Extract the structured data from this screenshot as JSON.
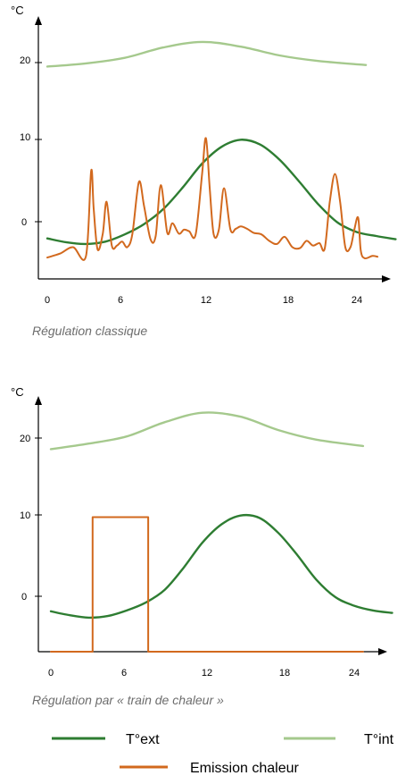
{
  "colors": {
    "ext": "#2e7d32",
    "int": "#a5c98d",
    "emission": "#d2691e",
    "axis": "#000000"
  },
  "legend": {
    "ext": "T°ext",
    "int": "T°int",
    "emission": "Emission chaleur"
  },
  "chart_data": [
    {
      "type": "line",
      "caption": "Régulation classique",
      "ylabel": "°C",
      "x_ticks": [
        "0",
        "6",
        "12",
        "18",
        "24"
      ],
      "y_ticks": [
        "0",
        "10",
        "20"
      ],
      "xlim": [
        0,
        27.3
      ],
      "ylim": [
        -7,
        27
      ],
      "series": [
        {
          "key": "int",
          "name": "T°int",
          "x": [
            0,
            3,
            6,
            9,
            12,
            15,
            18,
            21,
            24.7
          ],
          "y": [
            19.5,
            19.9,
            20.6,
            21.9,
            22.6,
            22.0,
            20.9,
            20.2,
            19.7
          ]
        },
        {
          "key": "ext",
          "name": "T°ext",
          "x": [
            0,
            1.5,
            3,
            4.5,
            6,
            7.5,
            9,
            10.5,
            12,
            13.5,
            15,
            16.5,
            18,
            19.5,
            21,
            22.5,
            24,
            25.5,
            27
          ],
          "y": [
            -2.1,
            -2.6,
            -2.8,
            -2.5,
            -1.6,
            -0.3,
            1.6,
            4.3,
            7.3,
            9.4,
            10.3,
            9.7,
            7.8,
            5.1,
            2.2,
            -0.1,
            -1.3,
            -1.8,
            -2.2
          ]
        },
        {
          "key": "emission",
          "name": "Emission chaleur",
          "x": [
            0,
            1,
            2,
            3,
            3.4,
            3.6,
            3.9,
            4.3,
            4.6,
            5,
            5.4,
            5.8,
            6.2,
            6.6,
            7.1,
            7.5,
            8,
            8.4,
            8.8,
            9.3,
            9.7,
            10.2,
            10.6,
            11,
            11.5,
            12,
            12.3,
            12.6,
            12.9,
            13.3,
            13.7,
            14.2,
            14.6,
            15,
            15.5,
            16,
            16.6,
            17.2,
            17.8,
            18.4,
            19,
            19.6,
            20.1,
            20.6,
            21.1,
            21.5,
            21.9,
            22.3,
            22.7,
            23.1,
            23.5,
            23.8,
            24.1,
            24.3,
            24.6,
            25.2,
            25.6
          ],
          "y": [
            -4.5,
            -4,
            -3.2,
            -4.3,
            6.4,
            1.5,
            -3.5,
            -1.5,
            2.5,
            -3,
            -3,
            -2.5,
            -3.2,
            -1.5,
            5,
            2,
            -2.2,
            -1.8,
            4.6,
            -1.4,
            -0.2,
            -1.5,
            -1,
            -1.2,
            -1.6,
            6,
            10.5,
            4,
            -1.6,
            -1,
            4.2,
            -1,
            -0.9,
            -0.6,
            -0.9,
            -1.4,
            -1.6,
            -2.4,
            -2.8,
            -1.9,
            -3.2,
            -3.3,
            -2.4,
            -3,
            -2.7,
            -3.4,
            2.5,
            6,
            2.5,
            -3.2,
            -3.2,
            -1,
            0.5,
            -3.6,
            -4.6,
            -4.3,
            -4.4
          ]
        }
      ]
    },
    {
      "type": "line",
      "caption": "Régulation par « train de chaleur »",
      "ylabel": "°C",
      "x_ticks": [
        "0",
        "6",
        "12",
        "18",
        "24"
      ],
      "y_ticks": [
        "0",
        "10",
        "20"
      ],
      "xlim": [
        0,
        27.3
      ],
      "ylim": [
        -7,
        27
      ],
      "series": [
        {
          "key": "int",
          "name": "T°int",
          "x": [
            0,
            3,
            6,
            9,
            12,
            15,
            18,
            21,
            24.7
          ],
          "y": [
            18.6,
            19.3,
            20.2,
            22.0,
            23.2,
            22.7,
            21.0,
            19.8,
            19.0
          ]
        },
        {
          "key": "ext",
          "name": "T°ext",
          "x": [
            0,
            1.5,
            3,
            4.5,
            6,
            7.5,
            9,
            10.5,
            12,
            13.5,
            15,
            16.5,
            18,
            19.5,
            21,
            22.5,
            24,
            25.5,
            27
          ],
          "y": [
            -1.9,
            -2.4,
            -2.7,
            -2.5,
            -1.8,
            -0.8,
            0.8,
            3.6,
            6.8,
            9.1,
            10.2,
            9.9,
            8.0,
            5.2,
            2.1,
            -0.1,
            -1.2,
            -1.8,
            -2.1
          ]
        },
        {
          "key": "emission",
          "name": "Emission chaleur",
          "step": true,
          "x": [
            0,
            3.3,
            3.3,
            7.7,
            7.7,
            24.7
          ],
          "y": [
            -7,
            -7,
            10,
            10,
            -7,
            -7
          ]
        }
      ]
    }
  ]
}
